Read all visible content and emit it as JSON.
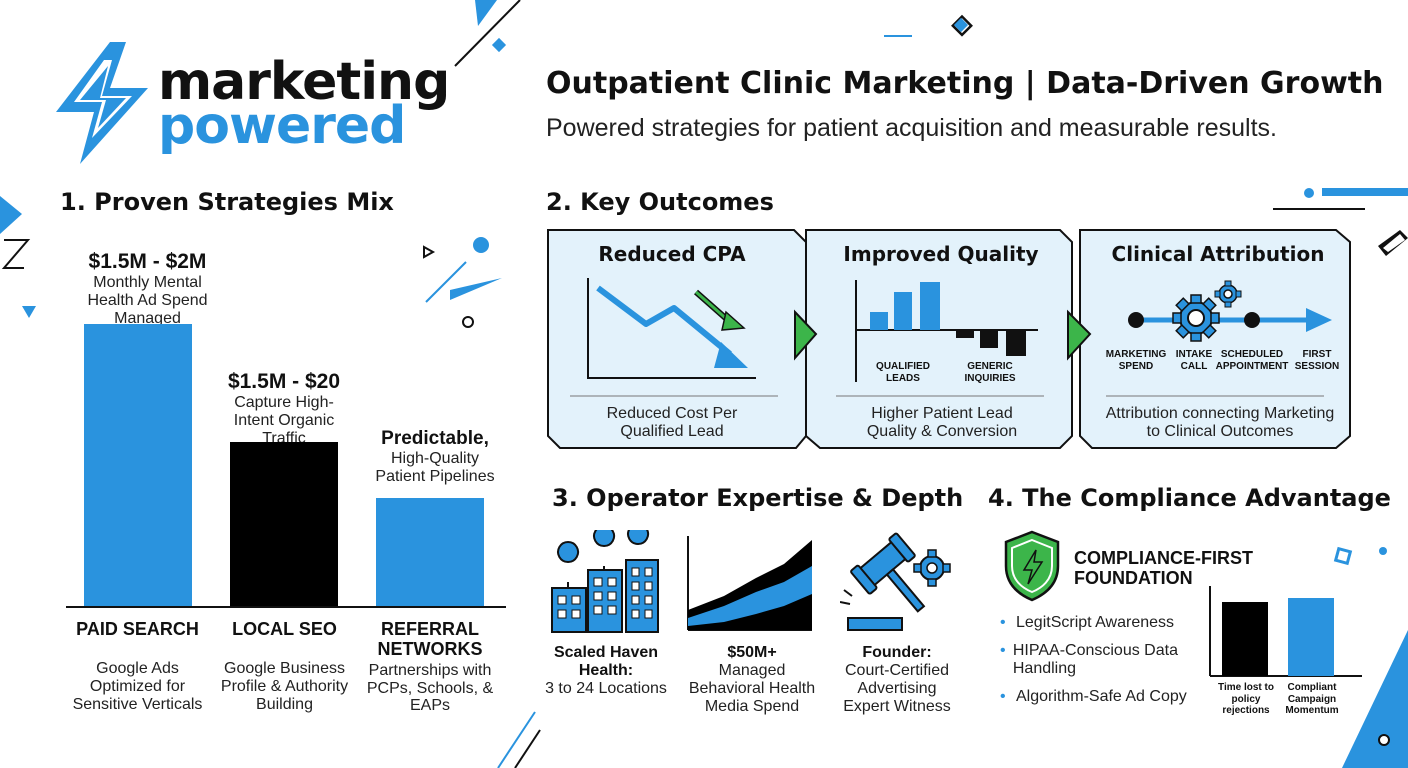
{
  "brand": {
    "line1": "marketing",
    "line2": "powered"
  },
  "header": {
    "title": "Outpatient Clinic Marketing | Data-Driven Growth",
    "subtitle": "Powered strategies for patient acquisition and measurable results."
  },
  "section1": {
    "heading": "1. Proven Strategies Mix",
    "bars": [
      {
        "value_label": "$1.5M - $2M",
        "sub": "Monthly Mental Health Ad Spend Managed",
        "category": "PAID SEARCH",
        "desc": "Google Ads Optimized for Sensitive Verticals",
        "color": "#2a93de"
      },
      {
        "value_label": "$1.5M - $20",
        "sub": "Capture High-Intent Organic Traffic",
        "category": "LOCAL SEO",
        "desc": "Google Business Profile & Authority Building",
        "color": "#000000"
      },
      {
        "value_label": "Predictable,",
        "sub": "High-Quality Patient Pipelines",
        "category": "REFERRAL NETWORKS",
        "desc": "Partnerships with PCPs, Schools, & EAPs",
        "color": "#2a93de"
      }
    ]
  },
  "section2": {
    "heading": "2. Key Outcomes",
    "cards": [
      {
        "title": "Reduced CPA",
        "caption": "Reduced Cost Per Qualified Lead"
      },
      {
        "title": "Improved Quality",
        "caption": "Higher Patient Lead Quality & Conversion",
        "pos_label": "QUALIFIED LEADS",
        "neg_label": "GENERIC INQUIRIES"
      },
      {
        "title": "Clinical Attribution",
        "caption": "Attribution connecting Marketing to Clinical Outcomes",
        "steps": [
          "MARKETING SPEND",
          "INTAKE CALL",
          "SCHEDULED APPOINTMENT",
          "FIRST SESSION"
        ]
      }
    ]
  },
  "section3": {
    "heading": "3. Operator Expertise & Depth",
    "items": [
      {
        "bold": "Scaled Haven Health:",
        "rest": "3 to 24 Locations",
        "icon": "city-buildings-icon"
      },
      {
        "bold": "$50M+",
        "rest": "Managed Behavioral Health Media Spend",
        "icon": "growth-area-chart-icon"
      },
      {
        "bold": "Founder:",
        "rest": "Court-Certified Advertising Expert Witness",
        "icon": "gavel-gear-icon"
      }
    ]
  },
  "section4": {
    "heading": "4. The Compliance Advantage",
    "badge": "COMPLIANCE-FIRST FOUNDATION",
    "bullets": [
      "LegitScript Awareness",
      "HIPAA-Conscious Data Handling",
      "Algorithm-Safe Ad Copy"
    ],
    "chart_labels": [
      "Time lost to policy rejections",
      "Compliant Campaign Momentum"
    ]
  },
  "colors": {
    "accent": "#2a93de",
    "card_bg": "#e3f2fb",
    "arrow_green": "#3cb54a",
    "dark": "#111111"
  }
}
